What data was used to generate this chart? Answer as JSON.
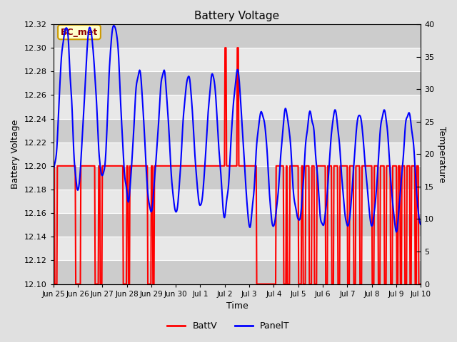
{
  "title": "Battery Voltage",
  "xlabel": "Time",
  "ylabel_left": "Battery Voltage",
  "ylabel_right": "Temperature",
  "ylim_left": [
    12.1,
    12.32
  ],
  "ylim_right": [
    0,
    40
  ],
  "yticks_left": [
    12.1,
    12.12,
    12.14,
    12.16,
    12.18,
    12.2,
    12.22,
    12.24,
    12.26,
    12.28,
    12.3,
    12.32
  ],
  "yticks_right": [
    0,
    5,
    10,
    15,
    20,
    25,
    30,
    35,
    40
  ],
  "background_color": "#e0e0e0",
  "plot_bg_color": "#e0e0e0",
  "stripe_color_dark": "#cccccc",
  "stripe_color_light": "#e8e8e8",
  "annotation_label": "BC_met",
  "annotation_box_color": "#ffffcc",
  "annotation_border_color": "#cc9900",
  "batt_color": "red",
  "panel_color": "blue",
  "legend_batt": "BattV",
  "legend_panel": "PanelT",
  "batt_linewidth": 1.5,
  "panel_linewidth": 1.5,
  "figsize": [
    6.4,
    4.8
  ],
  "dpi": 100,
  "xtick_labels": [
    "Jun 25",
    "Jun 26",
    "Jun 27",
    "Jun 28",
    "Jun 29",
    "Jun 30",
    "Jul 1",
    "Jul 2",
    "Jul 3",
    "Jul 4",
    "Jul 5",
    "Jul 6",
    "Jul 7",
    "Jul 8",
    "Jul 9",
    "Jul 10"
  ],
  "xlim": [
    0,
    15
  ]
}
